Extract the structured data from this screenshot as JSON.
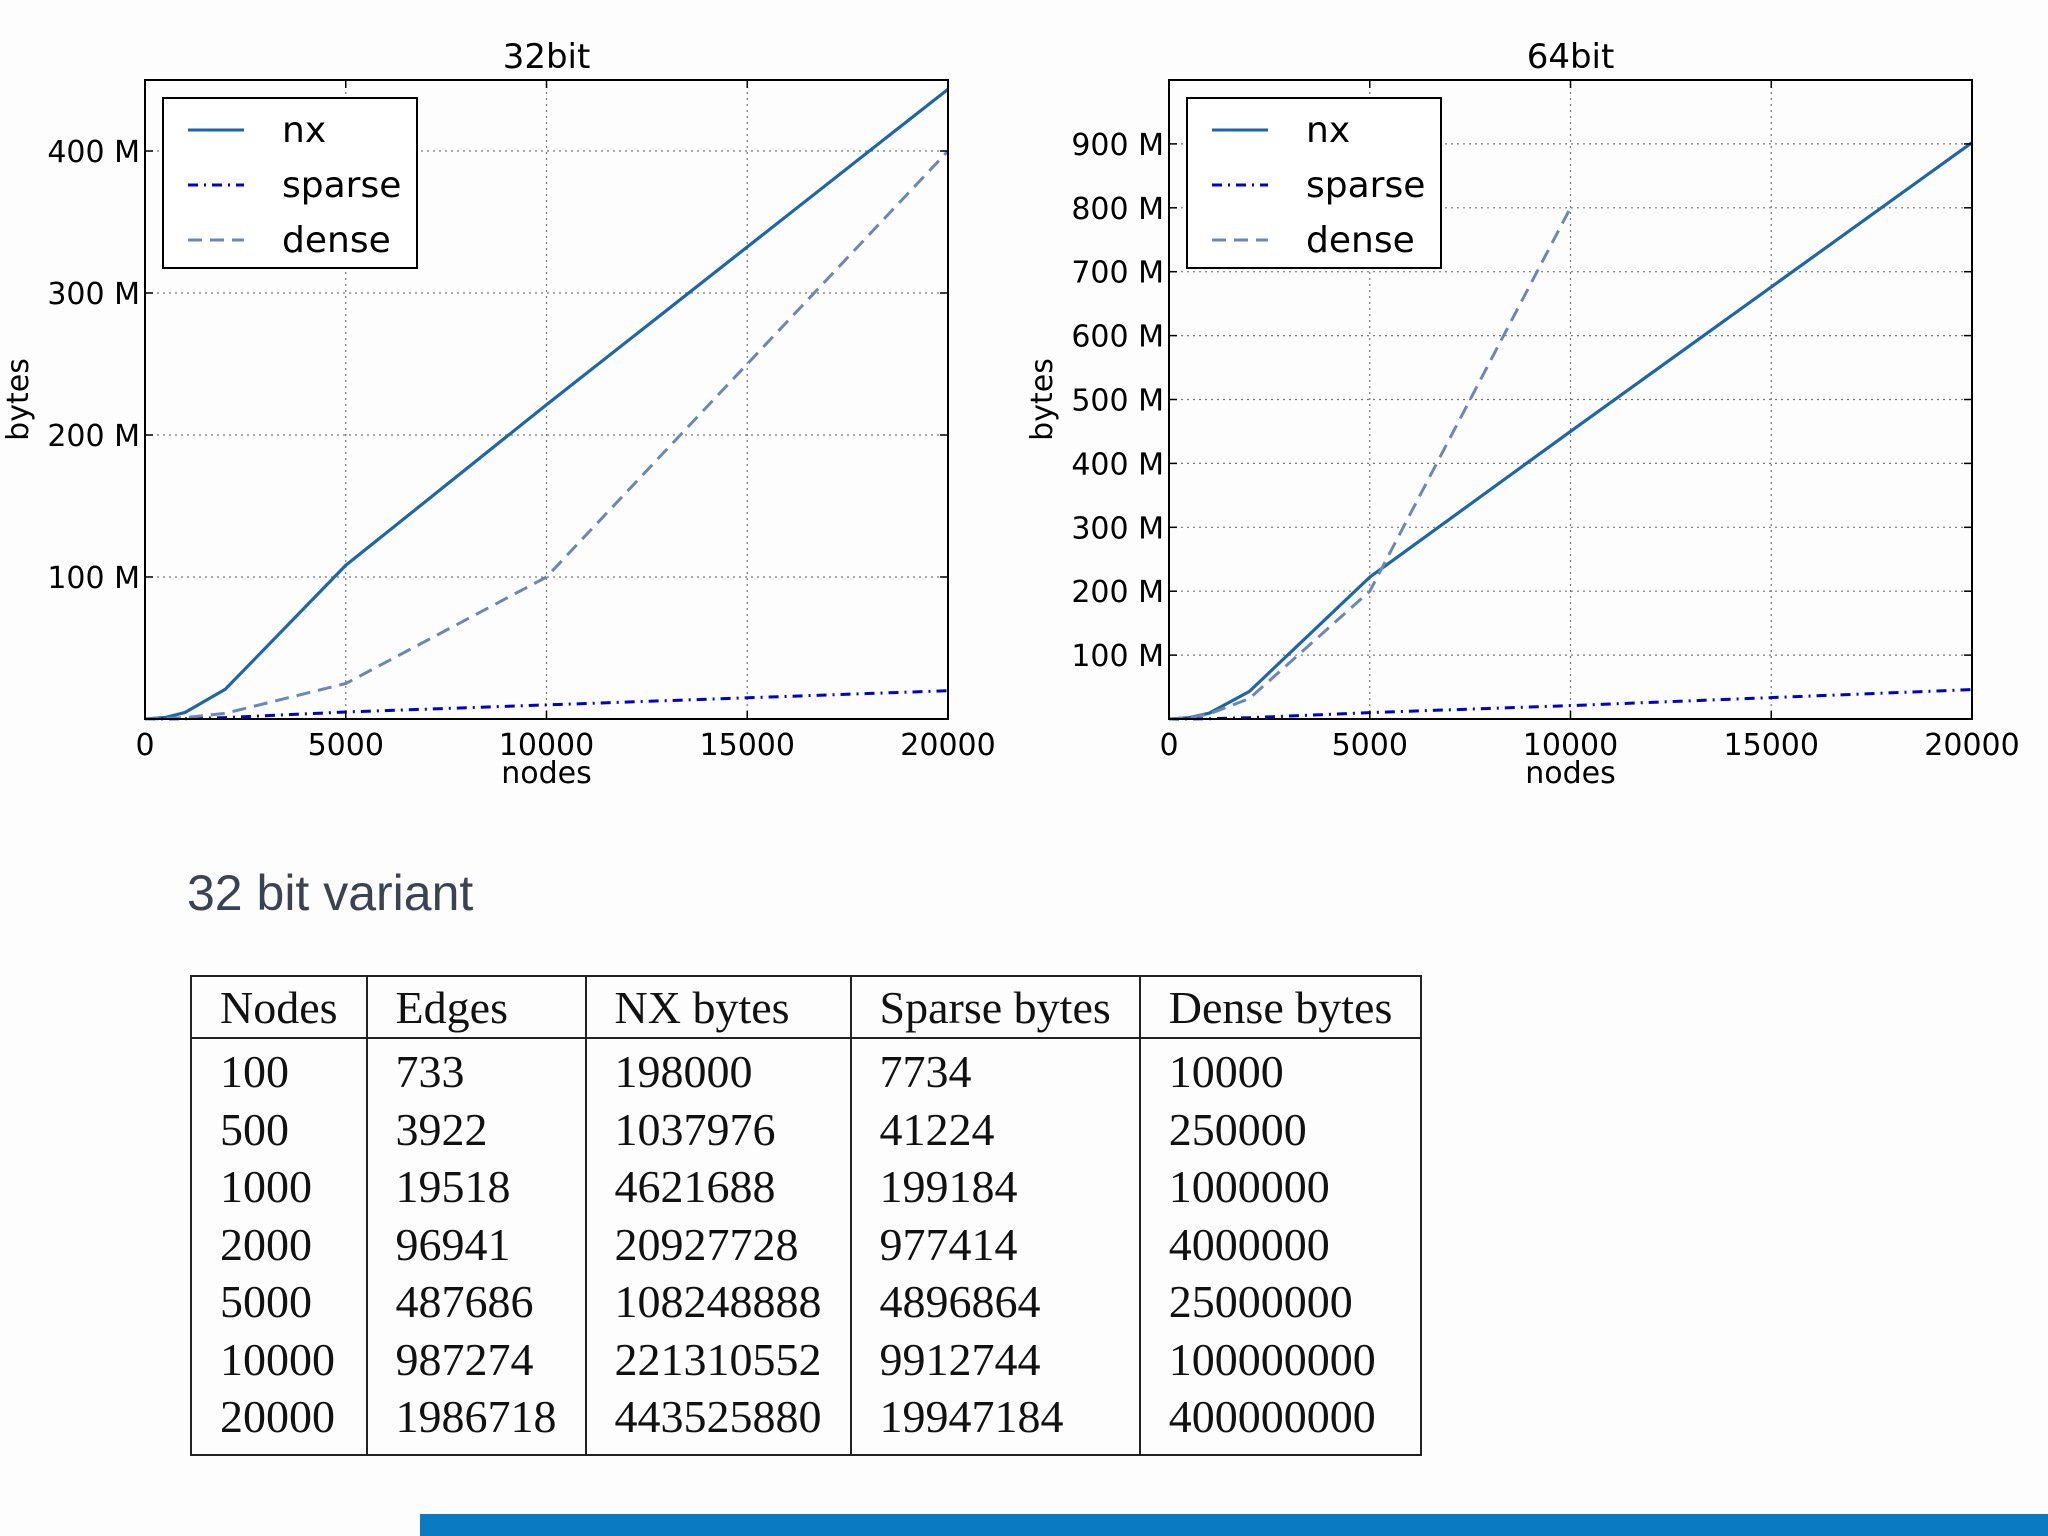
{
  "chart_data": [
    {
      "type": "line",
      "title": "32bit",
      "xlabel": "nodes",
      "ylabel": "bytes",
      "xlim": [
        0,
        20000
      ],
      "ylim": [
        0,
        450000000
      ],
      "x": [
        100,
        500,
        1000,
        2000,
        5000,
        10000,
        20000
      ],
      "xticks": [
        0,
        5000,
        10000,
        15000,
        20000
      ],
      "xtick_labels": [
        "0",
        "5000",
        "10000",
        "15000",
        "20000"
      ],
      "yticks": [
        100000000,
        200000000,
        300000000,
        400000000
      ],
      "ytick_labels": [
        "100 M",
        "200 M",
        "300 M",
        "400 M"
      ],
      "grid": true,
      "legend_position": "top-left",
      "series": [
        {
          "name": "nx",
          "style": "solid",
          "color": "#1f66a8",
          "values": [
            198000,
            1037976,
            4621688,
            20927728,
            108248888,
            221310552,
            443525880
          ]
        },
        {
          "name": "sparse",
          "style": "dashdot",
          "color": "#0000cc",
          "values": [
            7734,
            41224,
            199184,
            977414,
            4896864,
            9912744,
            19947184
          ]
        },
        {
          "name": "dense",
          "style": "dashed",
          "color": "#6b88b4",
          "values": [
            10000,
            250000,
            1000000,
            4000000,
            25000000,
            100000000,
            400000000
          ]
        }
      ]
    },
    {
      "type": "line",
      "title": "64bit",
      "xlabel": "nodes",
      "ylabel": "bytes",
      "xlim": [
        0,
        20000
      ],
      "ylim": [
        0,
        1000000000
      ],
      "x": [
        100,
        500,
        1000,
        2000,
        5000,
        10000,
        20000
      ],
      "xticks": [
        0,
        5000,
        10000,
        15000,
        20000
      ],
      "xtick_labels": [
        "0",
        "5000",
        "10000",
        "15000",
        "20000"
      ],
      "yticks": [
        100000000,
        200000000,
        300000000,
        400000000,
        500000000,
        600000000,
        700000000,
        800000000,
        900000000
      ],
      "ytick_labels": [
        "100 M",
        "200 M",
        "300 M",
        "400 M",
        "500 M",
        "600 M",
        "700 M",
        "800 M",
        "900 M"
      ],
      "grid": true,
      "legend_position": "top-left",
      "series": [
        {
          "name": "nx",
          "style": "solid",
          "color": "#1f66a8",
          "values": [
            400000,
            2000000,
            9000000,
            43000000,
            222000000,
            450000000,
            902000000
          ]
        },
        {
          "name": "sparse",
          "style": "dashdot",
          "color": "#0000cc",
          "values": [
            15000,
            80000,
            400000,
            2000000,
            10000000,
            21000000,
            46000000
          ]
        },
        {
          "name": "dense",
          "style": "dashed",
          "color": "#6b88b4",
          "values": [
            80000,
            2000000,
            8000000,
            32000000,
            200000000,
            800000000,
            null
          ]
        }
      ]
    }
  ],
  "subtitle": "32 bit variant",
  "table": {
    "headers": [
      "Nodes",
      "Edges",
      "NX bytes",
      "Sparse bytes",
      "Dense bytes"
    ],
    "rows": [
      [
        "100",
        "733",
        "198000",
        "7734",
        "10000"
      ],
      [
        "500",
        "3922",
        "1037976",
        "41224",
        "250000"
      ],
      [
        "1000",
        "19518",
        "4621688",
        "199184",
        "1000000"
      ],
      [
        "2000",
        "96941",
        "20927728",
        "977414",
        "4000000"
      ],
      [
        "5000",
        "487686",
        "108248888",
        "4896864",
        "25000000"
      ],
      [
        "10000",
        "987274",
        "221310552",
        "9912744",
        "100000000"
      ],
      [
        "20000",
        "1986718",
        "443525880",
        "19947184",
        "400000000"
      ]
    ]
  },
  "footer_color": "#0a7bc2"
}
